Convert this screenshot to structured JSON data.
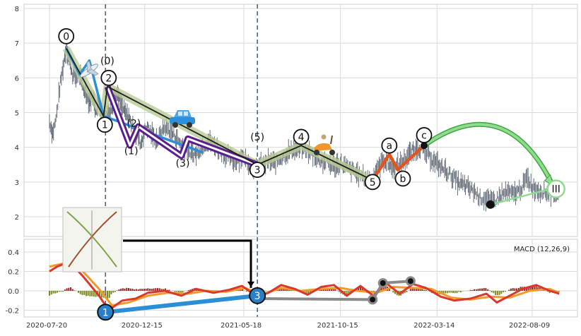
{
  "chart_data": [
    {
      "type": "candlestick-elliott-wave",
      "xlim": [
        "2020-07-20",
        "2022-10-01"
      ],
      "ylim": [
        1.5,
        8.1
      ],
      "x_ticks": [
        "2020-07-20",
        "2020-12-15",
        "2021-05-18",
        "2021-10-15",
        "2022-03-14",
        "2022-08-09"
      ],
      "y_ticks": [
        "2",
        "3",
        "4",
        "5",
        "6",
        "7",
        "8"
      ],
      "grid": true,
      "vertical_markers": [
        "2020-10-15",
        "2021-06-08"
      ],
      "price_trace": [
        {
          "d": "2020-07-20",
          "v": 4.75
        },
        {
          "d": "2020-07-25",
          "v": 4.4
        },
        {
          "d": "2020-07-30",
          "v": 4.8
        },
        {
          "d": "2020-08-05",
          "v": 5.7
        },
        {
          "d": "2020-08-10",
          "v": 6.3
        },
        {
          "d": "2020-08-15",
          "v": 6.9
        },
        {
          "d": "2020-08-20",
          "v": 6.5
        },
        {
          "d": "2020-08-25",
          "v": 6.1
        },
        {
          "d": "2020-08-30",
          "v": 6.0
        },
        {
          "d": "2020-09-05",
          "v": 6.1
        },
        {
          "d": "2020-09-10",
          "v": 5.7
        },
        {
          "d": "2020-09-15",
          "v": 5.6
        },
        {
          "d": "2020-09-20",
          "v": 5.3
        },
        {
          "d": "2020-09-25",
          "v": 5.45
        },
        {
          "d": "2020-09-30",
          "v": 5.1
        },
        {
          "d": "2020-10-05",
          "v": 5.2
        },
        {
          "d": "2020-10-10",
          "v": 4.95
        },
        {
          "d": "2020-10-15",
          "v": 4.9
        },
        {
          "d": "2020-10-20",
          "v": 5.0
        },
        {
          "d": "2020-10-25",
          "v": 5.2
        },
        {
          "d": "2020-10-30",
          "v": 5.5
        },
        {
          "d": "2020-11-04",
          "v": 5.45
        },
        {
          "d": "2020-11-09",
          "v": 5.2
        },
        {
          "d": "2020-11-14",
          "v": 5.0
        },
        {
          "d": "2020-11-19",
          "v": 4.9
        },
        {
          "d": "2020-11-24",
          "v": 4.7
        },
        {
          "d": "2020-11-29",
          "v": 4.5
        },
        {
          "d": "2020-12-04",
          "v": 4.3
        },
        {
          "d": "2020-12-09",
          "v": 4.1
        },
        {
          "d": "2020-12-14",
          "v": 4.45
        },
        {
          "d": "2020-12-19",
          "v": 4.6
        },
        {
          "d": "2020-12-24",
          "v": 4.4
        },
        {
          "d": "2020-12-29",
          "v": 4.3
        },
        {
          "d": "2021-01-05",
          "v": 4.2
        },
        {
          "d": "2021-01-15",
          "v": 4.6
        },
        {
          "d": "2021-01-25",
          "v": 4.45
        },
        {
          "d": "2021-02-05",
          "v": 4.2
        },
        {
          "d": "2021-02-15",
          "v": 3.95
        },
        {
          "d": "2021-02-25",
          "v": 3.85
        },
        {
          "d": "2021-03-05",
          "v": 3.8
        },
        {
          "d": "2021-03-15",
          "v": 4.05
        },
        {
          "d": "2021-03-25",
          "v": 4.2
        },
        {
          "d": "2021-04-05",
          "v": 4.0
        },
        {
          "d": "2021-04-15",
          "v": 3.85
        },
        {
          "d": "2021-04-25",
          "v": 3.7
        },
        {
          "d": "2021-05-05",
          "v": 3.6
        },
        {
          "d": "2021-05-15",
          "v": 3.75
        },
        {
          "d": "2021-05-25",
          "v": 3.55
        },
        {
          "d": "2021-06-05",
          "v": 3.35
        },
        {
          "d": "2021-06-15",
          "v": 3.5
        },
        {
          "d": "2021-06-25",
          "v": 3.6
        },
        {
          "d": "2021-07-05",
          "v": 3.55
        },
        {
          "d": "2021-07-15",
          "v": 3.7
        },
        {
          "d": "2021-07-25",
          "v": 3.85
        },
        {
          "d": "2021-08-05",
          "v": 3.95
        },
        {
          "d": "2021-08-15",
          "v": 4.0
        },
        {
          "d": "2021-08-25",
          "v": 3.9
        },
        {
          "d": "2021-09-05",
          "v": 3.75
        },
        {
          "d": "2021-09-15",
          "v": 3.6
        },
        {
          "d": "2021-09-25",
          "v": 3.55
        },
        {
          "d": "2021-10-05",
          "v": 3.45
        },
        {
          "d": "2021-10-15",
          "v": 3.55
        },
        {
          "d": "2021-10-25",
          "v": 3.4
        },
        {
          "d": "2021-11-05",
          "v": 3.3
        },
        {
          "d": "2021-11-15",
          "v": 3.2
        },
        {
          "d": "2021-11-25",
          "v": 3.1
        },
        {
          "d": "2021-12-02",
          "v": 3.05
        },
        {
          "d": "2021-12-10",
          "v": 3.3
        },
        {
          "d": "2021-12-20",
          "v": 3.65
        },
        {
          "d": "2021-12-28",
          "v": 3.55
        },
        {
          "d": "2022-01-05",
          "v": 3.4
        },
        {
          "d": "2022-01-15",
          "v": 3.5
        },
        {
          "d": "2022-01-25",
          "v": 3.7
        },
        {
          "d": "2022-02-05",
          "v": 3.9
        },
        {
          "d": "2022-02-12",
          "v": 4.0
        },
        {
          "d": "2022-02-20",
          "v": 3.9
        },
        {
          "d": "2022-03-01",
          "v": 3.75
        },
        {
          "d": "2022-03-15",
          "v": 3.5
        },
        {
          "d": "2022-03-30",
          "v": 3.3
        },
        {
          "d": "2022-04-15",
          "v": 3.0
        },
        {
          "d": "2022-04-30",
          "v": 2.85
        },
        {
          "d": "2022-05-10",
          "v": 2.75
        },
        {
          "d": "2022-05-20",
          "v": 2.55
        },
        {
          "d": "2022-06-01",
          "v": 2.5
        },
        {
          "d": "2022-06-10",
          "v": 2.45
        },
        {
          "d": "2022-06-20",
          "v": 2.6
        },
        {
          "d": "2022-06-30",
          "v": 2.7
        },
        {
          "d": "2022-07-10",
          "v": 2.65
        },
        {
          "d": "2022-07-20",
          "v": 2.75
        },
        {
          "d": "2022-08-01",
          "v": 3.1
        },
        {
          "d": "2022-08-10",
          "v": 2.85
        },
        {
          "d": "2022-08-20",
          "v": 2.75
        },
        {
          "d": "2022-09-01",
          "v": 2.7
        },
        {
          "d": "2022-09-10",
          "v": 2.65
        },
        {
          "d": "2022-09-20",
          "v": 2.6
        }
      ],
      "wave_labels": [
        {
          "text": "0",
          "d": "2020-08-15",
          "v": 7.2,
          "circled": true
        },
        {
          "text": "(0)",
          "d": "2020-10-18",
          "v": 6.5,
          "circled": false
        },
        {
          "text": "2",
          "d": "2020-10-20",
          "v": 6.0,
          "circled": true
        },
        {
          "text": "1",
          "d": "2020-10-14",
          "v": 4.65,
          "circled": true
        },
        {
          "text": "(2)",
          "d": "2020-11-28",
          "v": 4.7,
          "circled": false
        },
        {
          "text": "(1)",
          "d": "2020-11-24",
          "v": 3.9,
          "circled": false
        },
        {
          "text": "(3)",
          "d": "2021-02-12",
          "v": 3.55,
          "circled": false
        },
        {
          "text": "(5)",
          "d": "2021-06-08",
          "v": 4.3,
          "circled": false
        },
        {
          "text": "3",
          "d": "2021-06-08",
          "v": 3.35,
          "circled": true
        },
        {
          "text": "4",
          "d": "2021-08-15",
          "v": 4.3,
          "circled": true
        },
        {
          "text": "5",
          "d": "2021-12-04",
          "v": 3.0,
          "circled": true
        },
        {
          "text": "a",
          "d": "2021-12-30",
          "v": 4.05,
          "circled": true
        },
        {
          "text": "b",
          "d": "2022-01-20",
          "v": 3.1,
          "circled": true
        },
        {
          "text": "c",
          "d": "2022-02-22",
          "v": 4.35,
          "circled": true
        },
        {
          "text": "III",
          "d": "2022-09-15",
          "v": 2.8,
          "circled": true
        }
      ],
      "waves": {
        "main_path": [
          {
            "d": "2020-08-15",
            "v": 6.85
          },
          {
            "d": "2020-10-12",
            "v": 4.9
          },
          {
            "d": "2020-10-18",
            "v": 5.75
          },
          {
            "d": "2021-06-08",
            "v": 3.5
          },
          {
            "d": "2021-08-15",
            "v": 4.05
          },
          {
            "d": "2021-12-04",
            "v": 3.05
          }
        ],
        "purple_path": [
          {
            "d": "2020-10-18",
            "v": 5.75
          },
          {
            "d": "2020-11-22",
            "v": 4.05
          },
          {
            "d": "2020-12-05",
            "v": 4.6
          },
          {
            "d": "2021-02-10",
            "v": 3.75
          },
          {
            "d": "2021-02-20",
            "v": 4.25
          },
          {
            "d": "2021-06-08",
            "v": 3.5
          }
        ],
        "blue_path": [
          {
            "d": "2020-08-15",
            "v": 6.85
          },
          {
            "d": "2020-09-05",
            "v": 6.1
          },
          {
            "d": "2020-09-20",
            "v": 6.5
          },
          {
            "d": "2020-10-12",
            "v": 4.9
          },
          {
            "d": "2021-03-15",
            "v": 3.85
          }
        ],
        "orange_path": [
          {
            "d": "2021-12-04",
            "v": 3.05
          },
          {
            "d": "2021-12-30",
            "v": 3.8
          },
          {
            "d": "2022-01-12",
            "v": 3.35
          },
          {
            "d": "2022-02-22",
            "v": 4.05
          }
        ],
        "green_arc_from": {
          "d": "2022-02-22",
          "v": 4.05
        },
        "green_arc_to": {
          "d": "2022-09-15",
          "v": 2.8
        },
        "green_low": {
          "d": "2022-06-05",
          "v": 2.35
        }
      }
    },
    {
      "type": "macd",
      "title": "MACD (12,26,9)",
      "ylim": [
        -0.25,
        0.55
      ],
      "y_ticks": [
        "-0.2",
        "0.0",
        "0.2",
        "0.4"
      ],
      "xlim": [
        "2020-07-20",
        "2022-10-01"
      ],
      "macd_line": [
        {
          "d": "2020-07-20",
          "v": 0.2
        },
        {
          "d": "2020-08-01",
          "v": 0.25
        },
        {
          "d": "2020-08-20",
          "v": 0.3
        },
        {
          "d": "2020-09-10",
          "v": 0.15
        },
        {
          "d": "2020-10-05",
          "v": -0.05
        },
        {
          "d": "2020-10-20",
          "v": -0.2
        },
        {
          "d": "2020-11-10",
          "v": -0.1
        },
        {
          "d": "2020-12-01",
          "v": -0.08
        },
        {
          "d": "2020-12-20",
          "v": -0.02
        },
        {
          "d": "2021-01-15",
          "v": 0.0
        },
        {
          "d": "2021-02-10",
          "v": -0.05
        },
        {
          "d": "2021-03-05",
          "v": 0.02
        },
        {
          "d": "2021-04-01",
          "v": -0.02
        },
        {
          "d": "2021-04-25",
          "v": 0.01
        },
        {
          "d": "2021-05-15",
          "v": 0.05
        },
        {
          "d": "2021-06-08",
          "v": -0.06
        },
        {
          "d": "2021-06-25",
          "v": -0.02
        },
        {
          "d": "2021-07-15",
          "v": 0.06
        },
        {
          "d": "2021-08-05",
          "v": 0.02
        },
        {
          "d": "2021-08-25",
          "v": -0.04
        },
        {
          "d": "2021-09-15",
          "v": 0.04
        },
        {
          "d": "2021-10-05",
          "v": 0.06
        },
        {
          "d": "2021-10-25",
          "v": -0.05
        },
        {
          "d": "2021-11-15",
          "v": 0.05
        },
        {
          "d": "2021-12-05",
          "v": -0.05
        },
        {
          "d": "2021-12-25",
          "v": 0.08
        },
        {
          "d": "2022-01-15",
          "v": -0.03
        },
        {
          "d": "2022-02-05",
          "v": 0.07
        },
        {
          "d": "2022-02-25",
          "v": 0.03
        },
        {
          "d": "2022-03-20",
          "v": -0.06
        },
        {
          "d": "2022-04-10",
          "v": -0.1
        },
        {
          "d": "2022-05-05",
          "v": -0.08
        },
        {
          "d": "2022-05-30",
          "v": -0.03
        },
        {
          "d": "2022-06-15",
          "v": -0.12
        },
        {
          "d": "2022-07-05",
          "v": -0.05
        },
        {
          "d": "2022-07-25",
          "v": 0.02
        },
        {
          "d": "2022-08-15",
          "v": 0.06
        },
        {
          "d": "2022-09-05",
          "v": 0.0
        },
        {
          "d": "2022-09-20",
          "v": -0.03
        }
      ],
      "signal_line": [
        {
          "d": "2020-07-20",
          "v": 0.25
        },
        {
          "d": "2020-08-10",
          "v": 0.28
        },
        {
          "d": "2020-09-10",
          "v": 0.2
        },
        {
          "d": "2020-10-05",
          "v": 0.02
        },
        {
          "d": "2020-10-25",
          "v": -0.15
        },
        {
          "d": "2020-11-20",
          "v": -0.12
        },
        {
          "d": "2020-12-20",
          "v": -0.05
        },
        {
          "d": "2021-01-20",
          "v": -0.02
        },
        {
          "d": "2021-02-20",
          "v": -0.03
        },
        {
          "d": "2021-03-20",
          "v": 0.0
        },
        {
          "d": "2021-04-20",
          "v": -0.01
        },
        {
          "d": "2021-05-20",
          "v": 0.03
        },
        {
          "d": "2021-06-15",
          "v": -0.04
        },
        {
          "d": "2021-07-15",
          "v": 0.03
        },
        {
          "d": "2021-08-15",
          "v": 0.0
        },
        {
          "d": "2021-09-15",
          "v": 0.02
        },
        {
          "d": "2021-10-15",
          "v": 0.03
        },
        {
          "d": "2021-11-10",
          "v": 0.0
        },
        {
          "d": "2021-12-10",
          "v": -0.02
        },
        {
          "d": "2022-01-05",
          "v": 0.04
        },
        {
          "d": "2022-02-05",
          "v": 0.03
        },
        {
          "d": "2022-03-05",
          "v": 0.02
        },
        {
          "d": "2022-04-05",
          "v": -0.07
        },
        {
          "d": "2022-05-05",
          "v": -0.09
        },
        {
          "d": "2022-06-05",
          "v": -0.06
        },
        {
          "d": "2022-07-05",
          "v": -0.07
        },
        {
          "d": "2022-08-05",
          "v": 0.0
        },
        {
          "d": "2022-09-05",
          "v": 0.02
        },
        {
          "d": "2022-09-20",
          "v": -0.02
        }
      ],
      "wave_markers": [
        {
          "text": "1",
          "d": "2020-10-15",
          "v": -0.22,
          "fill": "#2a80c8"
        },
        {
          "text": "3",
          "d": "2021-06-08",
          "v": -0.05,
          "fill": "#2a80c8"
        }
      ],
      "blue_segment": [
        {
          "d": "2020-10-15",
          "v": -0.22
        },
        {
          "d": "2021-06-08",
          "v": -0.05
        }
      ],
      "grey_segments": [
        [
          {
            "d": "2021-06-08",
            "v": -0.08
          },
          {
            "d": "2021-12-04",
            "v": -0.09
          }
        ],
        [
          {
            "d": "2021-12-04",
            "v": -0.09
          },
          {
            "d": "2021-12-20",
            "v": 0.08
          },
          {
            "d": "2022-02-01",
            "v": 0.1
          }
        ]
      ]
    }
  ],
  "x_tick_labels": [
    "2020-07-20",
    "2020-12-15",
    "2021-05-18",
    "2021-10-15",
    "2022-03-14",
    "2022-08-09"
  ],
  "colors": {
    "grid": "#d9d9d9",
    "candles": "#555e6b",
    "main_wave": "#1e1e1e",
    "main_glow": "#b9cc95",
    "purple": "#5a1f8f",
    "blue": "#2c8fd6",
    "orange": "#e2541f",
    "green": "#8fdc8f",
    "macd": "#d9382a",
    "signal": "#f29a2e",
    "hist_pos": "#9b2020",
    "hist_neg": "#7a8a1e",
    "dash": "#4f6577",
    "grey_wave": "#8a8a8a"
  },
  "icons": [
    "airplane-icon",
    "car-icon",
    "scooter-icon",
    "inset-thumbnail-icon"
  ]
}
